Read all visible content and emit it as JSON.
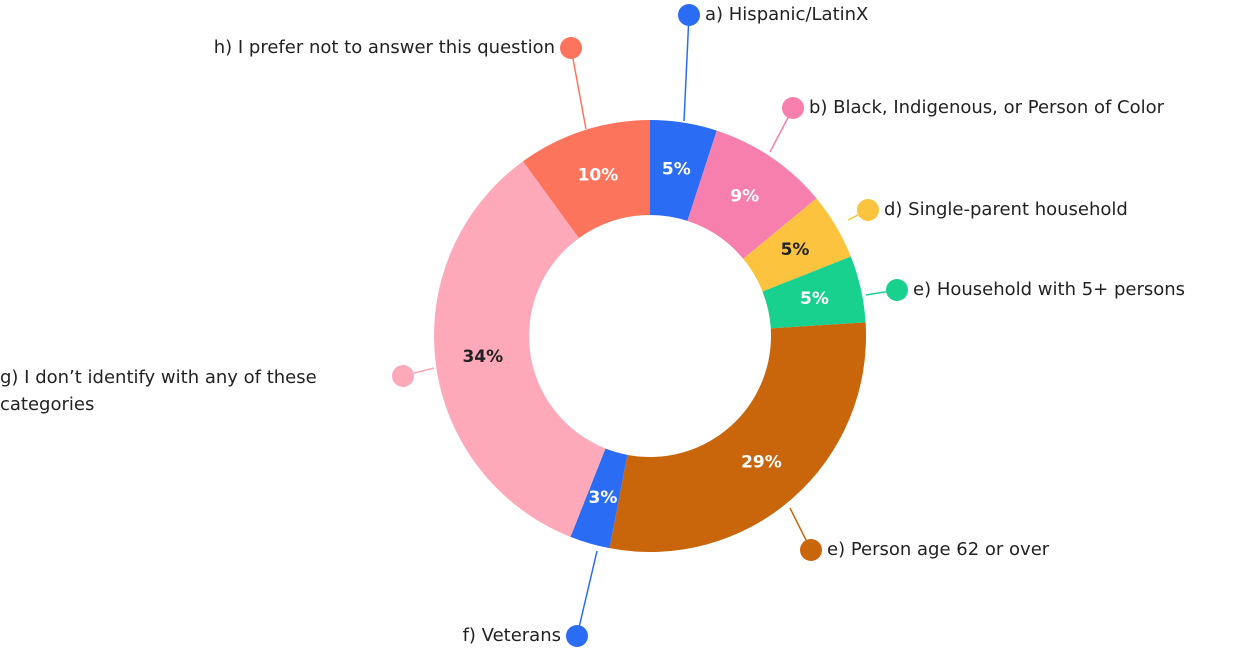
{
  "chart_data": {
    "type": "donut",
    "categories": [
      "a) Hispanic/LatinX",
      "b) Black, Indigenous, or Person of Color",
      "d) Single-parent household",
      "e) Household with 5+ persons",
      "e) Person age 62 or over",
      "f) Veterans",
      "g) I don’t identify with any of these categories",
      "h) I prefer not to answer this question"
    ],
    "values": [
      5,
      9,
      5,
      5,
      29,
      3,
      34,
      10
    ],
    "value_labels": [
      "5%",
      "9%",
      "5%",
      "5%",
      "29%",
      "3%",
      "34%",
      "10%"
    ],
    "colors": [
      "#2b6cf5",
      "#f77fae",
      "#fcc43e",
      "#19d18f",
      "#c9650b",
      "#2b6cf5",
      "#fda9b9",
      "#fb745b"
    ]
  }
}
